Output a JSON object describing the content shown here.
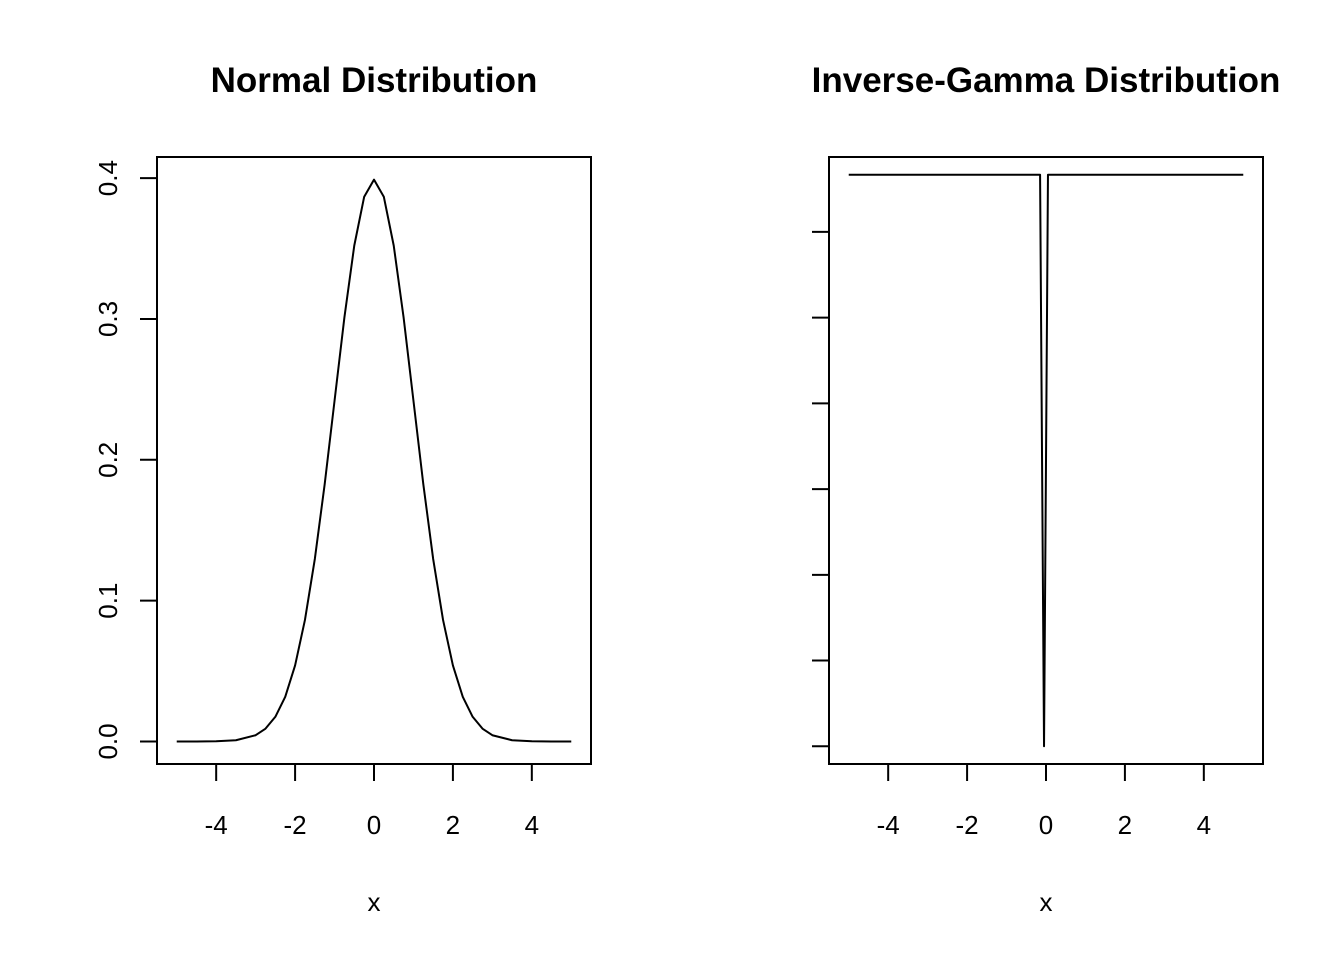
{
  "chart_data": [
    {
      "type": "line",
      "title": "Normal Distribution",
      "xlabel": "x",
      "ylabel": "",
      "xlim": [
        -5.5,
        5.5
      ],
      "ylim": [
        -0.016,
        0.415
      ],
      "xticks": [
        -4,
        -2,
        0,
        2,
        4
      ],
      "xtick_labels": [
        "-4",
        "-2",
        "0",
        "2",
        "4"
      ],
      "yticks": [
        0.0,
        0.1,
        0.2,
        0.3,
        0.4
      ],
      "ytick_labels": [
        "0.0",
        "0.1",
        "0.2",
        "0.3",
        "0.4"
      ],
      "grid": false,
      "series": [
        {
          "x": [
            -5,
            -4.5,
            -4,
            -3.5,
            -3,
            -2.75,
            -2.5,
            -2.25,
            -2,
            -1.75,
            -1.5,
            -1.25,
            -1,
            -0.75,
            -0.5,
            -0.25,
            0,
            0.25,
            0.5,
            0.75,
            1,
            1.25,
            1.5,
            1.75,
            2,
            2.25,
            2.5,
            2.75,
            3,
            3.5,
            4,
            4.5,
            5
          ],
          "y": [
            1.5e-06,
            1.6e-05,
            0.000134,
            0.000873,
            0.004432,
            0.009094,
            0.017528,
            0.03174,
            0.053991,
            0.086277,
            0.129518,
            0.182649,
            0.241971,
            0.301137,
            0.352065,
            0.386668,
            0.398942,
            0.386668,
            0.352065,
            0.301137,
            0.241971,
            0.182649,
            0.129518,
            0.086277,
            0.053991,
            0.03174,
            0.017528,
            0.009094,
            0.004432,
            0.000873,
            0.000134,
            1.6e-05,
            1.5e-06
          ]
        }
      ]
    },
    {
      "type": "line",
      "title": "Inverse-Gamma Distribution",
      "xlabel": "x",
      "ylabel": "",
      "xlim": [
        -5.5,
        5.5
      ],
      "ylim": [
        -0.124,
        4.124
      ],
      "xticks": [
        -4,
        -2,
        0,
        2,
        4
      ],
      "xtick_labels": [
        "-4",
        "-2",
        "0",
        "2",
        "4"
      ],
      "yticks": [
        0,
        0.6,
        1.2,
        1.8,
        2.4,
        3.0,
        3.6
      ],
      "ytick_labels": [],
      "grid": false,
      "series": [
        {
          "x": [
            -5,
            -0.15,
            -0.05,
            0.05,
            5
          ],
          "y": [
            4,
            4,
            0,
            4,
            4
          ]
        }
      ]
    }
  ]
}
